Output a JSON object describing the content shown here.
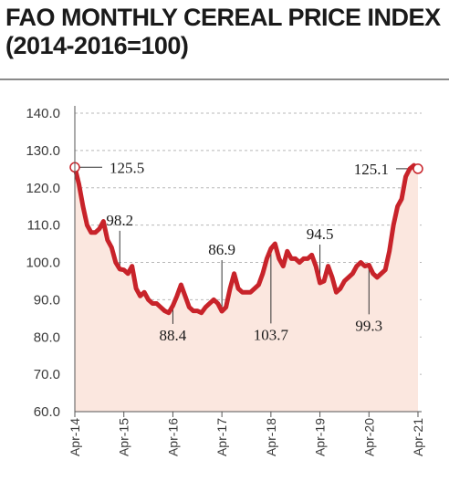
{
  "title": {
    "line1": "FAO MONTHLY CEREAL PRICE INDEX",
    "line2": "(2014-2016=100)"
  },
  "colors": {
    "line": "#c8232a",
    "area": "#fbe7df",
    "grid": "#b8b8b8",
    "axis": "#555555"
  },
  "chart_data": {
    "type": "line",
    "title": "FAO MONTHLY CEREAL PRICE INDEX (2014-2016=100)",
    "xlabel": "",
    "ylabel": "",
    "ylim": [
      60,
      140
    ],
    "y_ticks": [
      "60.0",
      "70.0",
      "80.0",
      "90.0",
      "100.0",
      "110.0",
      "120.0",
      "130.0",
      "140.0"
    ],
    "x_tick_labels": [
      "Apr-14",
      "Apr-15",
      "Apr-16",
      "Apr-17",
      "Apr-18",
      "Apr-19",
      "Apr-20",
      "Apr-21"
    ],
    "grid": "horizontal dashed",
    "area_fill": true,
    "series": [
      {
        "x": [
          "Apr-14",
          "May-14",
          "Jun-14",
          "Jul-14",
          "Aug-14",
          "Sep-14",
          "Oct-14",
          "Nov-14",
          "Dec-14",
          "Jan-15",
          "Feb-15",
          "Mar-15",
          "Apr-15",
          "May-15",
          "Jun-15",
          "Jul-15",
          "Aug-15",
          "Sep-15",
          "Oct-15",
          "Nov-15",
          "Dec-15",
          "Jan-16",
          "Feb-16",
          "Mar-16",
          "Apr-16",
          "May-16",
          "Jun-16",
          "Jul-16",
          "Aug-16",
          "Sep-16",
          "Oct-16",
          "Nov-16",
          "Dec-16",
          "Jan-17",
          "Feb-17",
          "Mar-17",
          "Apr-17",
          "May-17",
          "Jun-17",
          "Jul-17",
          "Aug-17",
          "Sep-17",
          "Oct-17",
          "Nov-17",
          "Dec-17",
          "Jan-18",
          "Feb-18",
          "Mar-18",
          "Apr-18",
          "May-18",
          "Jun-18",
          "Jul-18",
          "Aug-18",
          "Sep-18",
          "Oct-18",
          "Nov-18",
          "Dec-18",
          "Jan-19",
          "Feb-19",
          "Mar-19",
          "Apr-19",
          "May-19",
          "Jun-19",
          "Jul-19",
          "Aug-19",
          "Sep-19",
          "Oct-19",
          "Nov-19",
          "Dec-19",
          "Jan-20",
          "Feb-20",
          "Mar-20",
          "Apr-20",
          "May-20",
          "Jun-20",
          "Jul-20",
          "Aug-20",
          "Sep-20",
          "Oct-20",
          "Nov-20",
          "Dec-20",
          "Jan-21",
          "Feb-21",
          "Mar-21",
          "Apr-21"
        ],
        "values": [
          125.5,
          121,
          115,
          110,
          108,
          108,
          109,
          111,
          106,
          104,
          100,
          98.2,
          98,
          97,
          99,
          93,
          91,
          92,
          90,
          89,
          89,
          88,
          87,
          86.5,
          88.4,
          91,
          94,
          91,
          88,
          87,
          87,
          86.5,
          88,
          89,
          90,
          89,
          86.9,
          88,
          93,
          97,
          93,
          92,
          92,
          92,
          93,
          94,
          97,
          101,
          103.7,
          105,
          101,
          99,
          103,
          101,
          101,
          100,
          101,
          101,
          102,
          99,
          94.5,
          95,
          99,
          96,
          92,
          93,
          95,
          96,
          97,
          99,
          100,
          99,
          99.3,
          97,
          96,
          97,
          98,
          103,
          110,
          115,
          117,
          123,
          125.1,
          126,
          125.1
        ]
      }
    ],
    "annotations": [
      {
        "label": "125.5",
        "x": "Apr-14",
        "y": 125.5
      },
      {
        "label": "98.2",
        "x": "Mar-15",
        "y": 98.2
      },
      {
        "label": "88.4",
        "x": "Apr-16",
        "y": 88.4
      },
      {
        "label": "86.9",
        "x": "Apr-17",
        "y": 86.9
      },
      {
        "label": "103.7",
        "x": "Apr-18",
        "y": 103.7
      },
      {
        "label": "94.5",
        "x": "Apr-19",
        "y": 94.5
      },
      {
        "label": "99.3",
        "x": "Apr-20",
        "y": 99.3
      },
      {
        "label": "125.1",
        "x": "Apr-21",
        "y": 125.1
      }
    ]
  }
}
